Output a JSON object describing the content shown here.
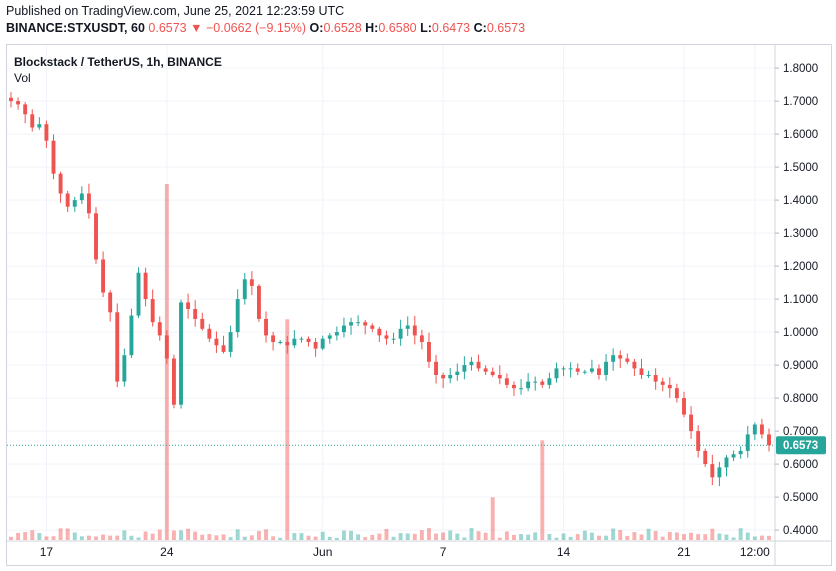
{
  "header": {
    "published": "Published on TradingView.com, June 25, 2021 12:23:59 UTC",
    "symbol_interval": "BINANCE:STXUSDT, 60",
    "last": "0.6573",
    "arrow": "▼",
    "change": "−0.0662 (−9.15%)",
    "o_label": "O:",
    "o_value": "0.6528",
    "h_label": "H:",
    "h_value": "0.6580",
    "l_label": "L:",
    "l_value": "0.6473",
    "c_label": "C:",
    "c_value": "0.6573"
  },
  "legend": {
    "title": "Blockstack / TetherUS, 1h, BINANCE",
    "volume": "Vol"
  },
  "colors": {
    "up": "#26a69a",
    "down": "#ef5350",
    "grid": "#f0f3fa",
    "axis_text": "#131722",
    "price_line": "#26a69a"
  },
  "chart_data": {
    "type": "candlestick",
    "y_ticks": [
      "1.8000",
      "1.7000",
      "1.6000",
      "1.5000",
      "1.4000",
      "1.3000",
      "1.2000",
      "1.1000",
      "1.0000",
      "0.9000",
      "0.8000",
      "0.7000",
      "0.6000",
      "0.5000",
      "0.4000"
    ],
    "ylim": [
      0.37,
      1.87
    ],
    "x_ticks": [
      "17",
      "24",
      "Jun",
      "7",
      "14",
      "21",
      "12:00"
    ],
    "x_tick_index": [
      5,
      22,
      44,
      61,
      78,
      95,
      105
    ],
    "n_periods": 108,
    "last_price_label": "0.6573",
    "last_price": 0.6573,
    "grid": true,
    "close_path": [
      1.7,
      1.69,
      1.66,
      1.62,
      1.63,
      1.58,
      1.48,
      1.42,
      1.38,
      1.4,
      1.42,
      1.36,
      1.22,
      1.12,
      1.06,
      0.85,
      0.93,
      1.05,
      1.18,
      1.1,
      1.03,
      0.99,
      0.92,
      0.78,
      1.09,
      1.07,
      1.04,
      1.01,
      0.98,
      0.96,
      0.94,
      1.0,
      1.1,
      1.16,
      1.14,
      1.04,
      0.99,
      0.97,
      0.97,
      0.96,
      0.98,
      0.98,
      0.97,
      0.95,
      0.98,
      0.99,
      1.0,
      1.02,
      1.03,
      1.03,
      1.02,
      1.01,
      0.99,
      0.98,
      0.98,
      1.01,
      1.02,
      0.99,
      0.97,
      0.91,
      0.87,
      0.86,
      0.87,
      0.88,
      0.9,
      0.91,
      0.89,
      0.88,
      0.87,
      0.86,
      0.84,
      0.83,
      0.83,
      0.85,
      0.85,
      0.84,
      0.86,
      0.89,
      0.89,
      0.89,
      0.88,
      0.88,
      0.89,
      0.87,
      0.91,
      0.93,
      0.92,
      0.91,
      0.89,
      0.87,
      0.87,
      0.85,
      0.84,
      0.83,
      0.8,
      0.75,
      0.7,
      0.64,
      0.6,
      0.56,
      0.59,
      0.62,
      0.63,
      0.64,
      0.69,
      0.72,
      0.69,
      0.6573
    ],
    "volume_spikes": [
      [
        22,
        1.0
      ],
      [
        39,
        0.62
      ],
      [
        75,
        0.28
      ],
      [
        68,
        0.12
      ]
    ]
  }
}
